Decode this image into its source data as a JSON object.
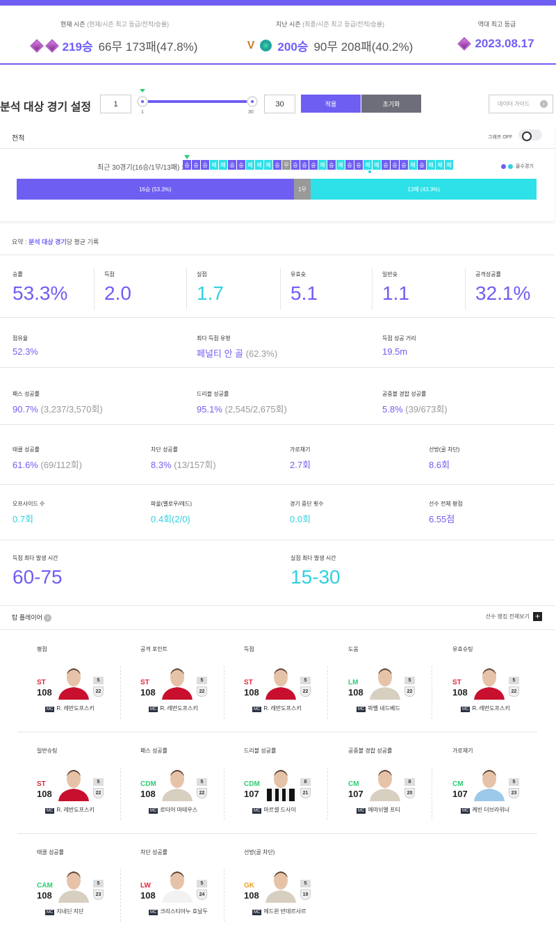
{
  "seasons": [
    {
      "label": "현재 시즌",
      "sub": "(현재/시즌 최고 등급/전적/승률)",
      "wins": "219승",
      "rest": "66무 173패(47.8%)"
    },
    {
      "label": "지난 시즌",
      "sub": "(최종/시즌 최고 등급/전적/승률)",
      "wins": "200승",
      "rest": "90무 208패(40.2%)"
    },
    {
      "label": "역대 최고 등급",
      "sub": "",
      "wins": "2023.08.17",
      "rest": ""
    }
  ],
  "filter": {
    "title": "분석 대상 경기 설정",
    "from": "1",
    "to": "30",
    "min": "1",
    "max": "30",
    "apply": "적용",
    "reset": "초기화",
    "guide": "데이터 가이드"
  },
  "record": {
    "title": "전적",
    "graph_toggle": "그래프 OFF",
    "recent": "최근 30경기(16승/1무/13패) :",
    "streak": [
      "승",
      "승",
      "승",
      "패",
      "패",
      "승",
      "승",
      "패",
      "패",
      "패",
      "승",
      "무",
      "승",
      "승",
      "승",
      "패",
      "승",
      "패",
      "승",
      "승",
      "패",
      "패",
      "승",
      "승",
      "승",
      "패",
      "승",
      "패",
      "패",
      "패"
    ],
    "legend": "올수경기",
    "win_bar": "16승 (53.3%)",
    "draw_bar": "1무",
    "loss_bar": "13패 (43.3%)",
    "win_pct": 53.3,
    "draw_pct": 3.3,
    "loss_pct": 43.3
  },
  "summary": {
    "prefix": "요약 : ",
    "highlight": "분석 대상 경기",
    "suffix": "당 평균 기록"
  },
  "stats1": [
    {
      "l": "승률",
      "v": "53.3%",
      "c": "purple"
    },
    {
      "l": "득점",
      "v": "2.0",
      "c": "purple"
    },
    {
      "l": "실점",
      "v": "1.7",
      "c": "cyan"
    },
    {
      "l": "유효슛",
      "v": "5.1",
      "c": "purple"
    },
    {
      "l": "일반슛",
      "v": "1.1",
      "c": "purple"
    },
    {
      "l": "공격성공률",
      "v": "32.1%",
      "c": "purple"
    }
  ],
  "stats2": [
    {
      "l": "점유율",
      "v": "52.3%",
      "d": ""
    },
    {
      "l": "최다 득점 유형",
      "v": "페널티 안 골",
      "d": " (62.3%)"
    },
    {
      "l": "득점 성공 거리",
      "v": "19.5m",
      "d": ""
    }
  ],
  "stats3": [
    {
      "l": "패스 성공률",
      "v": "90.7%",
      "d": " (3,237/3,570회)"
    },
    {
      "l": "드리블 성공률",
      "v": "95.1%",
      "d": " (2,545/2,675회)"
    },
    {
      "l": "공중볼 경합 성공률",
      "v": "5.8%",
      "d": " (39/673회)"
    }
  ],
  "stats4": [
    {
      "l": "태클 성공률",
      "v": "61.6%",
      "d": " (69/112회)",
      "c": "purple"
    },
    {
      "l": "차단 성공률",
      "v": "8.3%",
      "d": " (13/157회)",
      "c": "purple"
    },
    {
      "l": "가로채기",
      "v": "2.7회",
      "d": "",
      "c": "purple"
    },
    {
      "l": "선방(골 차단)",
      "v": "8.6회",
      "d": "",
      "c": "purple"
    }
  ],
  "stats5": [
    {
      "l": "오프사이드 수",
      "v": "0.7회",
      "d": "",
      "c": "cyan"
    },
    {
      "l": "파울(옐로우/레드)",
      "v": "0.4회(2/0)",
      "d": "",
      "c": "cyan"
    },
    {
      "l": "경기 중단 횟수",
      "v": "0.0회",
      "d": "",
      "c": "cyan"
    },
    {
      "l": "선수 전체 평점",
      "v": "6.55점",
      "d": "",
      "c": "purple"
    }
  ],
  "stats6": [
    {
      "l": "득점 최다 발생 시간",
      "v": "60-75",
      "c": "purple"
    },
    {
      "l": "실점 최다 발생 시간",
      "v": "15-30",
      "c": "cyan"
    }
  ],
  "top": {
    "title": "탑 플레이어",
    "view_all": "선수 랭킹 전체보기"
  },
  "players": [
    {
      "cat": "평점",
      "pos": "ST",
      "ovr": "108",
      "g": "5",
      "s": "22",
      "name": "R. 레반도프스키",
      "kit": "red"
    },
    {
      "cat": "공격 포인트",
      "pos": "ST",
      "ovr": "108",
      "g": "5",
      "s": "22",
      "name": "R. 레반도프스키",
      "kit": "red"
    },
    {
      "cat": "득점",
      "pos": "ST",
      "ovr": "108",
      "g": "5",
      "s": "22",
      "name": "R. 레반도프스키",
      "kit": "red"
    },
    {
      "cat": "도움",
      "pos": "LM",
      "ovr": "108",
      "g": "5",
      "s": "22",
      "name": "파벨 네드베드",
      "kit": "sepia"
    },
    {
      "cat": "유효슈팅",
      "pos": "ST",
      "ovr": "108",
      "g": "5",
      "s": "22",
      "name": "R. 레반도프스키",
      "kit": "red"
    },
    {
      "cat": "일반슈팅",
      "pos": "ST",
      "ovr": "108",
      "g": "5",
      "s": "22",
      "name": "R. 레반도프스키",
      "kit": "red"
    },
    {
      "cat": "패스 성공률",
      "pos": "CDM",
      "ovr": "108",
      "g": "5",
      "s": "22",
      "name": "로타어 마테우스",
      "kit": "sepia"
    },
    {
      "cat": "드리블 성공률",
      "pos": "CDM",
      "ovr": "107",
      "g": "8",
      "s": "21",
      "name": "마르셀 드사이",
      "kit": "stripe"
    },
    {
      "cat": "공중볼 경합 성공률",
      "pos": "CM",
      "ovr": "107",
      "g": "8",
      "s": "20",
      "name": "에마뉘엘 프티",
      "kit": "sepia"
    },
    {
      "cat": "가로채기",
      "pos": "CM",
      "ovr": "107",
      "g": "5",
      "s": "23",
      "name": "케빈 더브라위너",
      "kit": "sky"
    },
    {
      "cat": "태클 성공률",
      "pos": "CAM",
      "ovr": "108",
      "g": "5",
      "s": "23",
      "name": "지네딘 지단",
      "kit": "sepia"
    },
    {
      "cat": "차단 성공률",
      "pos": "LW",
      "ovr": "108",
      "g": "5",
      "s": "24",
      "name": "크리스티아누 호날두",
      "kit": "white"
    },
    {
      "cat": "선방(골 차단)",
      "pos": "GK",
      "ovr": "108",
      "g": "5",
      "s": "19",
      "name": "에드윈 반데르사르",
      "kit": "sepia"
    }
  ]
}
